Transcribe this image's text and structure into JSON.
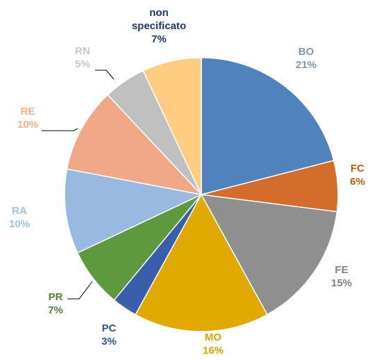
{
  "chart_data": {
    "type": "pie",
    "categories": [
      "BO",
      "FC",
      "FE",
      "MO",
      "PC",
      "PR",
      "RA",
      "RE",
      "RN",
      "non specificato"
    ],
    "values": [
      21,
      6,
      15,
      16,
      3,
      7,
      10,
      10,
      5,
      7
    ],
    "value_labels": [
      "21%",
      "6%",
      "15%",
      "16%",
      "3%",
      "7%",
      "10%",
      "10%",
      "5%",
      "7%"
    ],
    "colors": [
      "#5083be",
      "#d46c2c",
      "#8f8f8f",
      "#e1a800",
      "#3a5ea9",
      "#5f993f",
      "#9ab9e0",
      "#f0a889",
      "#c0c0c0",
      "#ffcd82"
    ],
    "label_colors": [
      "#8097b3",
      "#c55a11",
      "#7f7f7f",
      "#d9a300",
      "#2f5597",
      "#548235",
      "#9dc3e6",
      "#f4b183",
      "#c9c9c9",
      "#1f3864"
    ]
  }
}
